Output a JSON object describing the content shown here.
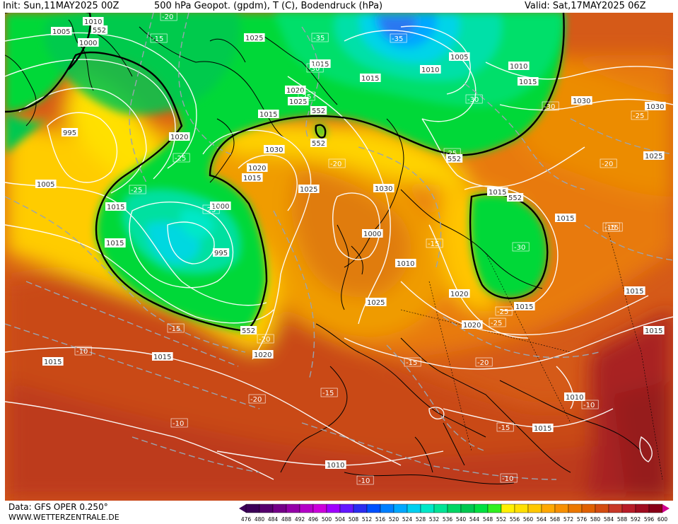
{
  "header": {
    "init": "Init: Sun,11MAY2025 00Z",
    "title": "500 hPa Geopot. (gpdm), T (C), Bodendruck (hPa)",
    "valid": "Valid: Sat,17MAY2025 06Z"
  },
  "footer": {
    "data_source": "Data: GFS OPER 0.250°",
    "website": "WWW.WETTERZENTRALE.DE"
  },
  "legend": {
    "ticks": [
      "476",
      "480",
      "484",
      "488",
      "492",
      "496",
      "500",
      "504",
      "508",
      "512",
      "516",
      "520",
      "524",
      "528",
      "532",
      "536",
      "540",
      "544",
      "548",
      "552",
      "556",
      "560",
      "564",
      "568",
      "572",
      "576",
      "580",
      "584",
      "588",
      "592",
      "596",
      "600"
    ],
    "colors": [
      "#3c0058",
      "#56006e",
      "#740088",
      "#9400a8",
      "#b400c8",
      "#cc00dc",
      "#a000ff",
      "#6418ff",
      "#2c2cf0",
      "#0050ff",
      "#0080ff",
      "#00a8ff",
      "#00d0f0",
      "#00e8c8",
      "#00e496",
      "#00d664",
      "#00c850",
      "#00e040",
      "#30f020",
      "#fff000",
      "#ffe000",
      "#ffc800",
      "#ffa800",
      "#f89000",
      "#ec7800",
      "#e06000",
      "#d44c10",
      "#c83828",
      "#b81c28",
      "#a00c20",
      "#880018",
      "#d00090"
    ]
  },
  "map_labels": {
    "pressure": [
      "1010",
      "1005",
      "1000",
      "995",
      "1020",
      "1025",
      "1015",
      "1020",
      "1025",
      "1015",
      "1030",
      "1020",
      "1015",
      "1020",
      "1025",
      "1030",
      "1015",
      "1005",
      "1010",
      "1015",
      "1010",
      "1000",
      "1010",
      "1005",
      "1005",
      "1000",
      "995",
      "1025",
      "1030",
      "1030",
      "1025",
      "1015",
      "1015",
      "1020",
      "1015",
      "1020",
      "1015",
      "1015",
      "1010",
      "1020",
      "1015",
      "1015",
      "1010",
      "1015",
      "1015",
      "1015",
      "1020"
    ],
    "temperature": [
      "-20",
      "-15",
      "-35",
      "-30",
      "-35",
      "-30",
      "-25",
      "-30",
      "-25",
      "-25",
      "-20",
      "-25",
      "-25",
      "-15",
      "-20",
      "-20",
      "-15",
      "-25",
      "-20",
      "-25",
      "-30",
      "-25",
      "-15",
      "-15",
      "-10",
      "-20",
      "-15",
      "-10",
      "-10",
      "-15",
      "-10",
      "-10",
      "-15",
      "-20"
    ],
    "geopotential": [
      "552",
      "552",
      "552",
      "552",
      "552",
      "552"
    ]
  }
}
